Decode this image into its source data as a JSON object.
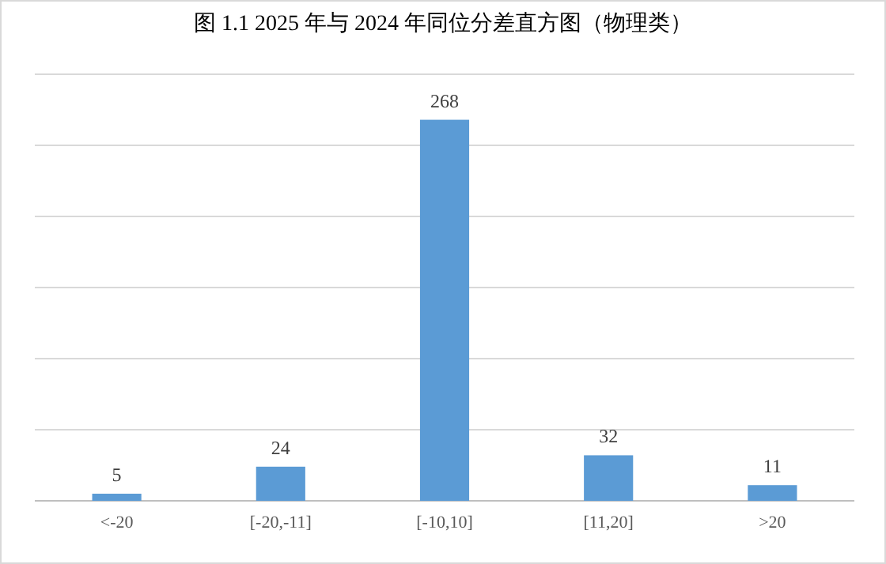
{
  "chart_data": {
    "type": "bar",
    "title": "图 1.1 2025 年与 2024 年同位分差直方图（物理类）",
    "categories": [
      "<-20",
      "[-20,-11]",
      "[-10,10]",
      "[11,20]",
      ">20"
    ],
    "values": [
      5,
      24,
      268,
      32,
      11
    ],
    "color": "#5b9bd5",
    "data_labels": true,
    "ylim": [
      0,
      300
    ],
    "yticks": [
      {
        "value": 0,
        "label": null
      },
      {
        "value": 50,
        "label": null
      },
      {
        "value": 100,
        "label": null
      },
      {
        "value": 150,
        "label": null
      },
      {
        "value": 200,
        "label": null
      },
      {
        "value": 250,
        "label": null
      },
      {
        "value": 300,
        "label": null
      }
    ],
    "tick_labels": "x",
    "grid": "y"
  }
}
